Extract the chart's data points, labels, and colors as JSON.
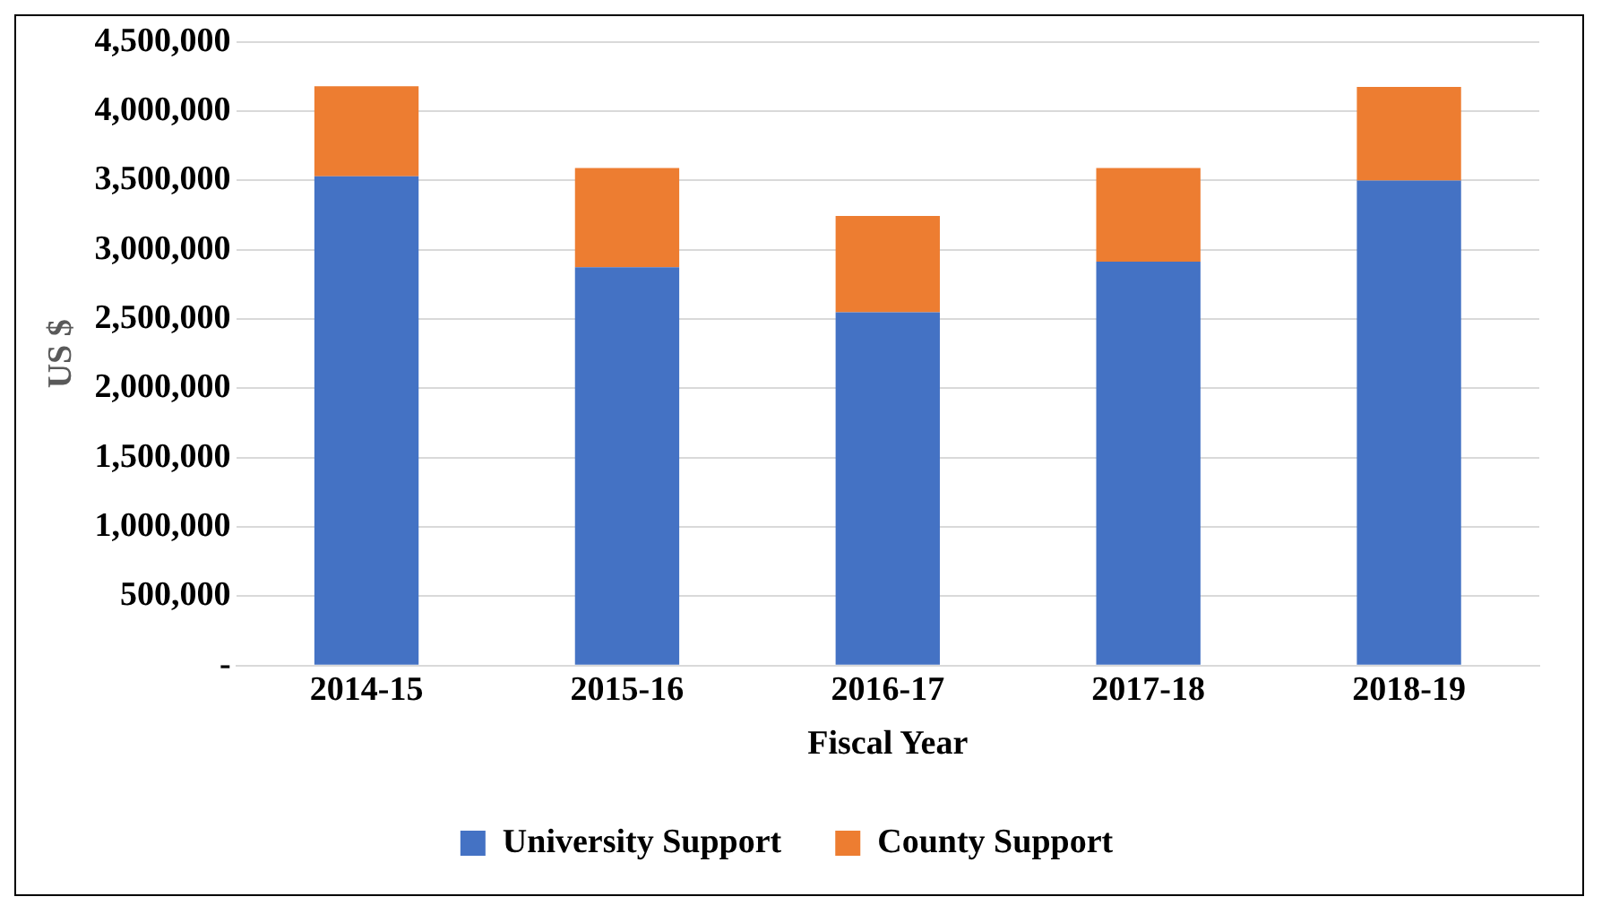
{
  "chart_data": {
    "type": "bar",
    "stacked": true,
    "xlabel": "Fiscal Year",
    "ylabel": "US $",
    "categories": [
      "2014-15",
      "2015-16",
      "2016-17",
      "2017-18",
      "2018-19"
    ],
    "series": [
      {
        "name": "University Support",
        "color": "#4472c4",
        "values": [
          3530000,
          2875000,
          2550000,
          2915000,
          3500000
        ]
      },
      {
        "name": "County Support",
        "color": "#ed7d31",
        "values": [
          650000,
          715000,
          695000,
          675000,
          675000
        ]
      }
    ],
    "ylim": [
      0,
      4500000
    ],
    "yticks": [
      {
        "value": 0,
        "label": "-"
      },
      {
        "value": 500000,
        "label": "500,000"
      },
      {
        "value": 1000000,
        "label": "1,000,000"
      },
      {
        "value": 1500000,
        "label": "1,500,000"
      },
      {
        "value": 2000000,
        "label": "2,000,000"
      },
      {
        "value": 2500000,
        "label": "2,500,000"
      },
      {
        "value": 3000000,
        "label": "3,000,000"
      },
      {
        "value": 3500000,
        "label": "3,500,000"
      },
      {
        "value": 4000000,
        "label": "4,000,000"
      },
      {
        "value": 4500000,
        "label": "4,500,000"
      }
    ],
    "grid": "y",
    "legend": "bottom"
  }
}
